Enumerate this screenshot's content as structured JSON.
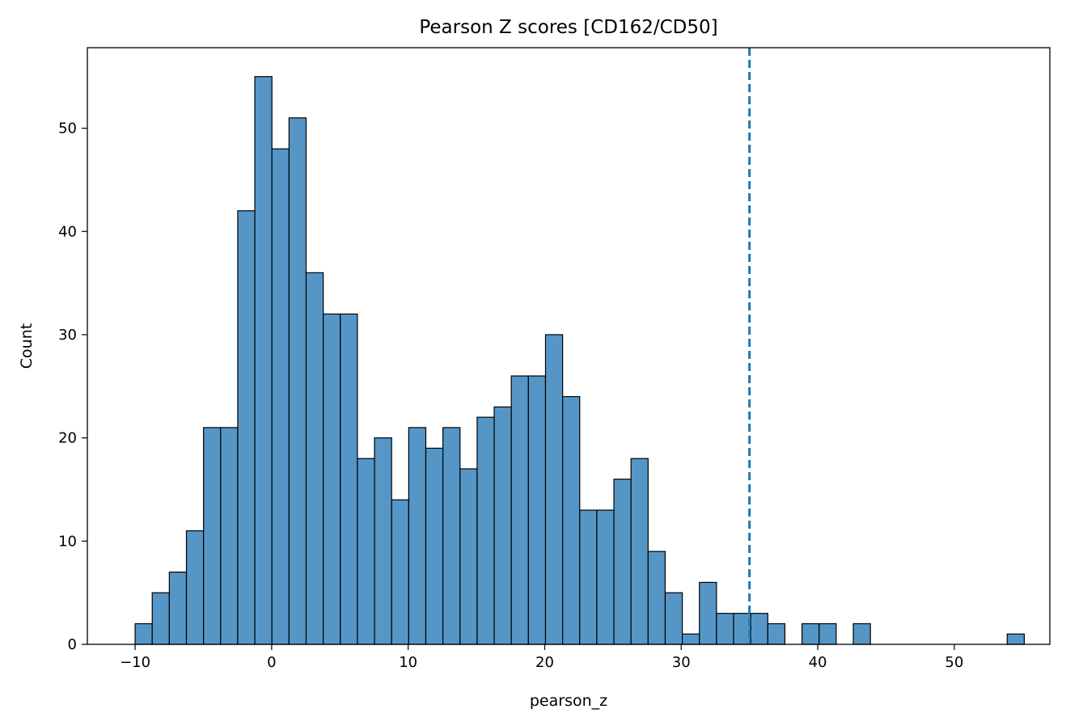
{
  "chart_data": {
    "type": "bar",
    "title": "Pearson Z scores [CD162/CD50]",
    "xlabel": "pearson_z",
    "ylabel": "Count",
    "xlim": [
      -13.5,
      57
    ],
    "ylim": [
      0,
      57.8
    ],
    "xticks": [
      -10,
      0,
      10,
      20,
      30,
      40,
      50
    ],
    "xtick_labels": [
      "−10",
      "0",
      "10",
      "20",
      "30",
      "40",
      "50"
    ],
    "yticks": [
      0,
      10,
      20,
      30,
      40,
      50
    ],
    "ytick_labels": [
      "0",
      "10",
      "20",
      "30",
      "40",
      "50"
    ],
    "bin_start": -10.0,
    "bin_width": 1.2525,
    "counts": [
      2,
      5,
      7,
      11,
      21,
      21,
      42,
      55,
      48,
      51,
      36,
      32,
      32,
      18,
      20,
      14,
      21,
      19,
      21,
      17,
      22,
      23,
      26,
      26,
      30,
      24,
      13,
      13,
      16,
      18,
      9,
      5,
      1,
      6,
      3,
      3,
      3,
      2,
      0,
      2,
      2,
      0,
      2,
      0,
      0,
      0,
      0,
      0,
      0,
      0,
      0,
      1
    ],
    "bar_color": "#5596c6",
    "edge_color": "#000000",
    "threshold_line": {
      "x": 35,
      "style": "dashed",
      "color": "#1f77b4"
    },
    "grid": false,
    "legend": "none"
  }
}
